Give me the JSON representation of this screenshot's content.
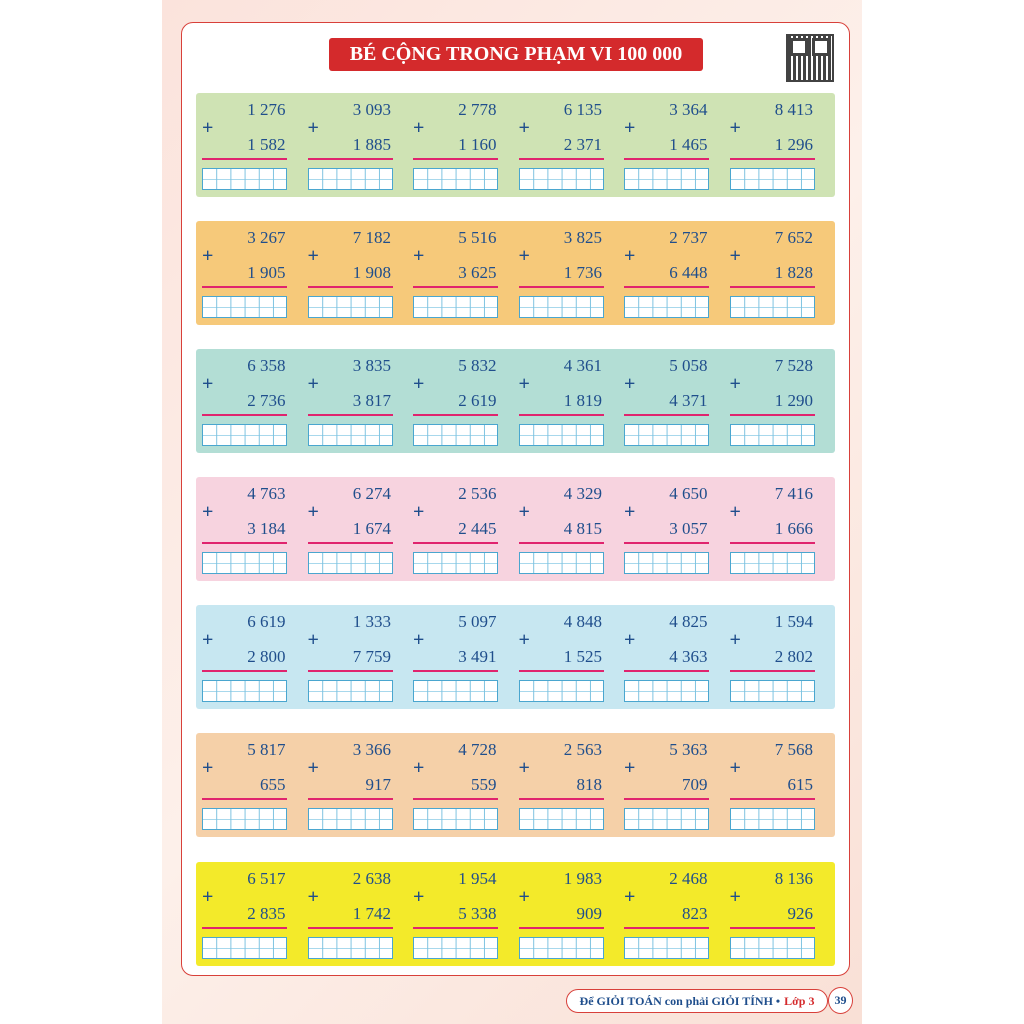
{
  "title": "BÉ CỘNG TRONG PHẠM VI 100 000",
  "operator": "+",
  "footer": {
    "text": "Để GIỎI TOÁN con phải GIỎI TÍNH •",
    "grade": "Lớp 3",
    "page": "39"
  },
  "rows": [
    {
      "color": "#cfe3b4",
      "problems": [
        [
          "1 276",
          "1 582"
        ],
        [
          "3 093",
          "1 885"
        ],
        [
          "2 778",
          "1 160"
        ],
        [
          "6 135",
          "2 371"
        ],
        [
          "3 364",
          "1 465"
        ],
        [
          "8 413",
          "1 296"
        ]
      ]
    },
    {
      "color": "#f6c97a",
      "problems": [
        [
          "3 267",
          "1 905"
        ],
        [
          "7 182",
          "1 908"
        ],
        [
          "5 516",
          "3 625"
        ],
        [
          "3 825",
          "1 736"
        ],
        [
          "2 737",
          "6 448"
        ],
        [
          "7 652",
          "1 828"
        ]
      ]
    },
    {
      "color": "#b3ded5",
      "problems": [
        [
          "6 358",
          "2 736"
        ],
        [
          "3 835",
          "3 817"
        ],
        [
          "5 832",
          "2 619"
        ],
        [
          "4 361",
          "1 819"
        ],
        [
          "5 058",
          "4 371"
        ],
        [
          "7 528",
          "1 290"
        ]
      ]
    },
    {
      "color": "#f7d3df",
      "problems": [
        [
          "4 763",
          "3 184"
        ],
        [
          "6 274",
          "1 674"
        ],
        [
          "2 536",
          "2 445"
        ],
        [
          "4 329",
          "4 815"
        ],
        [
          "4 650",
          "3 057"
        ],
        [
          "7 416",
          "1 666"
        ]
      ]
    },
    {
      "color": "#c7e7f1",
      "problems": [
        [
          "6 619",
          "2 800"
        ],
        [
          "1 333",
          "7 759"
        ],
        [
          "5 097",
          "3 491"
        ],
        [
          "4 848",
          "1 525"
        ],
        [
          "4 825",
          "4 363"
        ],
        [
          "1 594",
          "2 802"
        ]
      ]
    },
    {
      "color": "#f5d0a8",
      "problems": [
        [
          "5 817",
          "655"
        ],
        [
          "3 366",
          "917"
        ],
        [
          "4 728",
          "559"
        ],
        [
          "2 563",
          "818"
        ],
        [
          "5 363",
          "709"
        ],
        [
          "7 568",
          "615"
        ]
      ]
    },
    {
      "color": "#f3ea2a",
      "problems": [
        [
          "6 517",
          "2 835"
        ],
        [
          "2 638",
          "1 742"
        ],
        [
          "1 954",
          "5 338"
        ],
        [
          "1 983",
          "909"
        ],
        [
          "2 468",
          "823"
        ],
        [
          "8 136",
          "926"
        ]
      ]
    }
  ]
}
